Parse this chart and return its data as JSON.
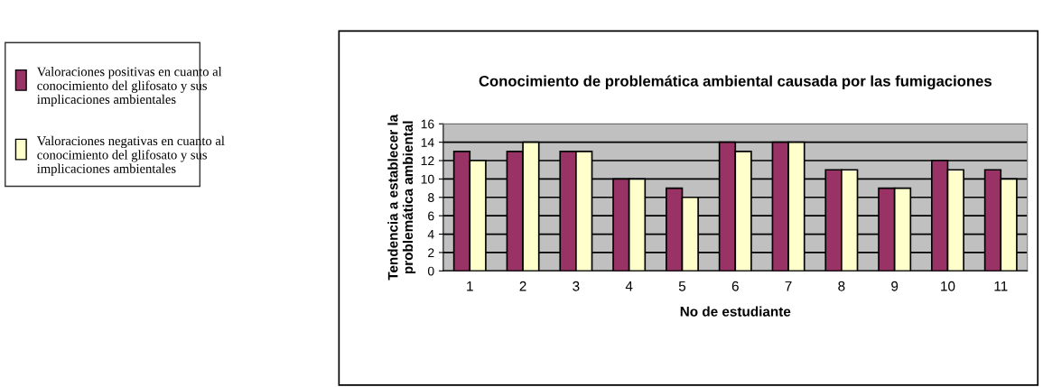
{
  "chart_data": {
    "type": "bar",
    "title": "Conocimiento de problemática ambiental causada por las fumigaciones",
    "xlabel": "No de estudiante",
    "ylabel": "Tendencia a establecer la problemática ambiental",
    "categories": [
      "1",
      "2",
      "3",
      "4",
      "5",
      "6",
      "7",
      "8",
      "9",
      "10",
      "11"
    ],
    "series": [
      {
        "name": "Valoraciones positivas en cuanto al conocimiento del glifosato y sus implicaciones ambientales",
        "color": "#993366",
        "values": [
          13,
          13,
          13,
          10,
          9,
          14,
          14,
          11,
          9,
          12,
          11
        ]
      },
      {
        "name": "Valoraciones negativas en cuanto al conocimiento del glifosato y sus implicaciones ambientales",
        "color": "#ffffcc",
        "values": [
          12,
          14,
          13,
          10,
          8,
          13,
          14,
          11,
          9,
          11,
          10
        ]
      }
    ],
    "ylim": [
      0,
      16
    ],
    "yticks": [
      0,
      2,
      4,
      6,
      8,
      10,
      12,
      14,
      16
    ],
    "grid": "y",
    "legend": "left"
  }
}
